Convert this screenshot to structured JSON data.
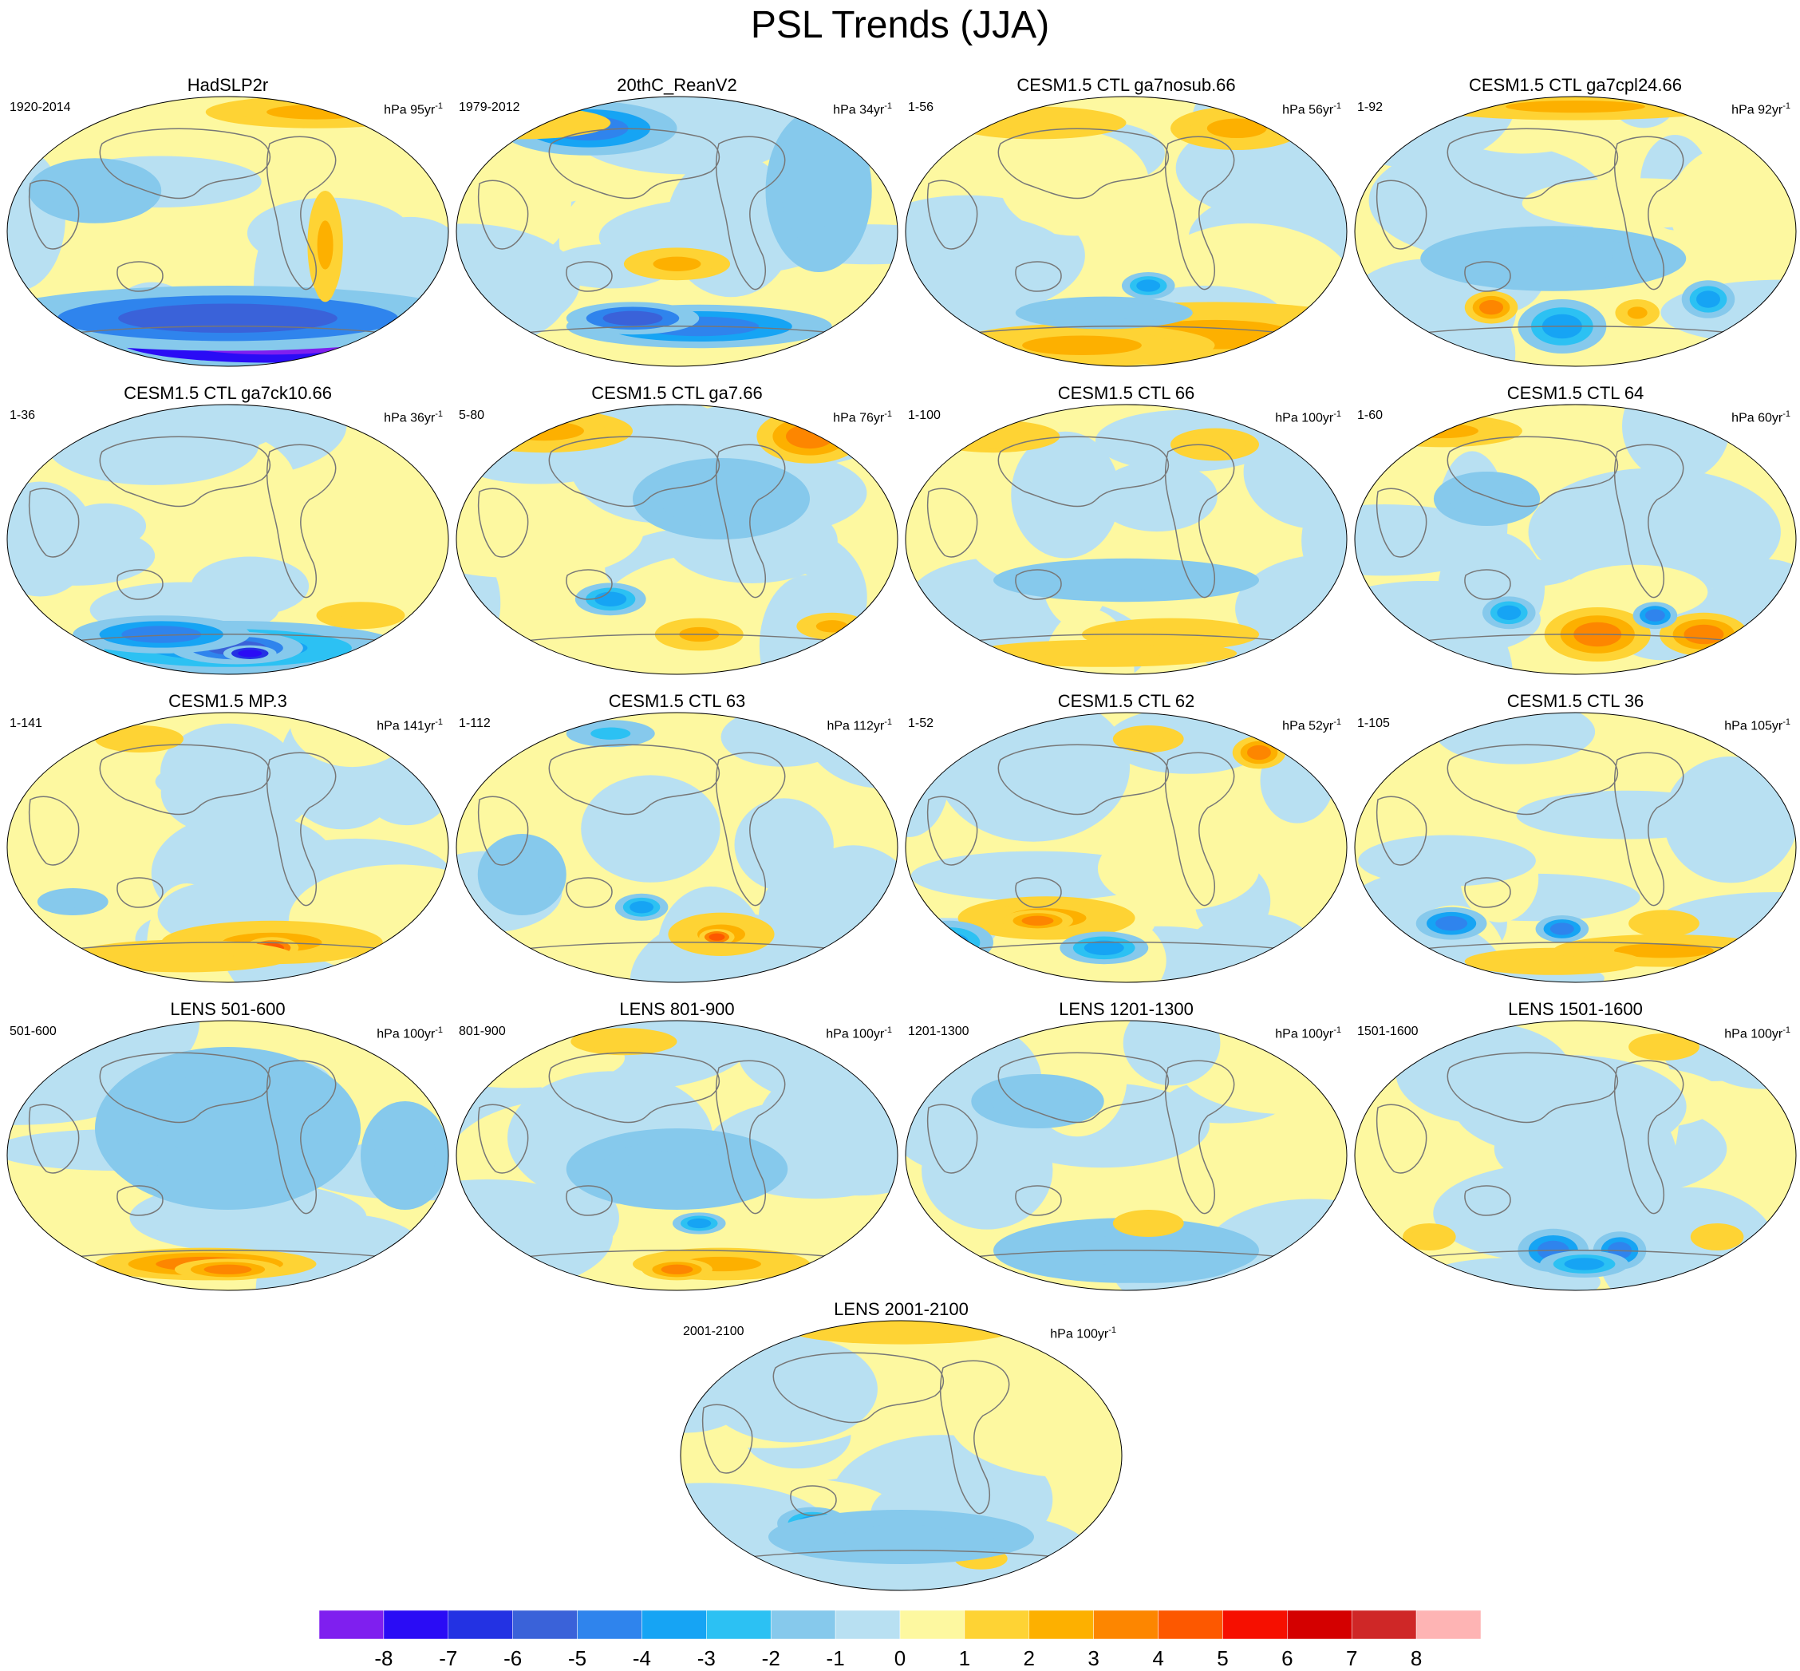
{
  "title": "PSL Trends (JJA)",
  "colors": {
    "levels": [
      "#7F1FEF",
      "#2A0CF5",
      "#2332E3",
      "#3A62D9",
      "#2F84ED",
      "#16A4F4",
      "#2CC1F3",
      "#86C9EC",
      "#B8E0F2",
      "#FDF8A0",
      "#FED334",
      "#FDB000",
      "#FD8600",
      "#FD5800",
      "#F60F00",
      "#D40000",
      "#CF2727",
      "#FEB4B4"
    ],
    "outside_land": "#777777"
  },
  "panels": [
    {
      "title": "HadSLP2r",
      "years": "1920-2014",
      "units": "hPa 95yr",
      "units_exp": "-1"
    },
    {
      "title": "20thC_ReanV2",
      "years": "1979-2012",
      "units": "hPa 34yr",
      "units_exp": "-1"
    },
    {
      "title": "CESM1.5 CTL ga7nosub.66",
      "years": "1-56",
      "units": "hPa 56yr",
      "units_exp": "-1"
    },
    {
      "title": "CESM1.5 CTL ga7cpl24.66",
      "years": "1-92",
      "units": "hPa 92yr",
      "units_exp": "-1"
    },
    {
      "title": "CESM1.5 CTL ga7ck10.66",
      "years": "1-36",
      "units": "hPa 36yr",
      "units_exp": "-1"
    },
    {
      "title": "CESM1.5 CTL ga7.66",
      "years": "5-80",
      "units": "hPa 76yr",
      "units_exp": "-1"
    },
    {
      "title": "CESM1.5 CTL 66",
      "years": "1-100",
      "units": "hPa 100yr",
      "units_exp": "-1"
    },
    {
      "title": "CESM1.5 CTL 64",
      "years": "1-60",
      "units": "hPa 60yr",
      "units_exp": "-1"
    },
    {
      "title": "CESM1.5 MP.3",
      "years": "1-141",
      "units": "hPa 141yr",
      "units_exp": "-1"
    },
    {
      "title": "CESM1.5 CTL 63",
      "years": "1-112",
      "units": "hPa 112yr",
      "units_exp": "-1"
    },
    {
      "title": "CESM1.5 CTL 62",
      "years": "1-52",
      "units": "hPa 52yr",
      "units_exp": "-1"
    },
    {
      "title": "CESM1.5 CTL 36",
      "years": "1-105",
      "units": "hPa 105yr",
      "units_exp": "-1"
    },
    {
      "title": "LENS 501-600",
      "years": "501-600",
      "units": "hPa 100yr",
      "units_exp": "-1"
    },
    {
      "title": "LENS 801-900",
      "years": "801-900",
      "units": "hPa 100yr",
      "units_exp": "-1"
    },
    {
      "title": "LENS 1201-1300",
      "years": "1201-1300",
      "units": "hPa 100yr",
      "units_exp": "-1"
    },
    {
      "title": "LENS 1501-1600",
      "years": "1501-1600",
      "units": "hPa 100yr",
      "units_exp": "-1"
    },
    {
      "title": "LENS 2001-2100",
      "years": "2001-2100",
      "units": "hPa 100yr",
      "units_exp": "-1"
    }
  ],
  "colorbar": {
    "labels": [
      "-8",
      "-7",
      "-6",
      "-5",
      "-4",
      "-3",
      "-2",
      "-1",
      "0",
      "1",
      "2",
      "3",
      "4",
      "5",
      "6",
      "7",
      "8"
    ]
  }
}
